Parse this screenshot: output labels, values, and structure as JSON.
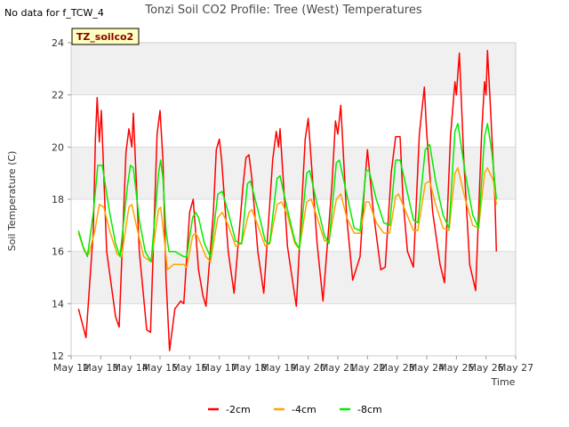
{
  "chart_data": {
    "type": "line",
    "title": "Tonzi Soil CO2 Profile: Tree (West) Temperatures",
    "no_data_note": "No data for f_TCW_4",
    "badge": "TZ_soilco2",
    "xlabel": "Time",
    "ylabel": "Soil Temperature (C)",
    "xlim": [
      12,
      27
    ],
    "ylim": [
      12,
      24
    ],
    "x_ticks": [
      12,
      13,
      14,
      15,
      16,
      17,
      18,
      19,
      20,
      21,
      22,
      23,
      24,
      25,
      26,
      27
    ],
    "x_tick_labels": [
      "May 12",
      "May 13",
      "May 14",
      "May 15",
      "May 16",
      "May 17",
      "May 18",
      "May 19",
      "May 20",
      "May 21",
      "May 22",
      "May 23",
      "May 24",
      "May 25",
      "May 26",
      "May 27"
    ],
    "y_ticks": [
      12,
      14,
      16,
      18,
      20,
      22,
      24
    ],
    "y_tick_labels": [
      "12",
      "14",
      "16",
      "18",
      "20",
      "22",
      "24"
    ],
    "grid": true,
    "legend_position": "bottom-center",
    "series": [
      {
        "name": "-2cm",
        "color": "#ff0000",
        "points": [
          [
            12.25,
            13.8
          ],
          [
            12.5,
            12.7
          ],
          [
            12.75,
            16.8
          ],
          [
            12.82,
            20.3
          ],
          [
            12.88,
            21.9
          ],
          [
            12.95,
            20.2
          ],
          [
            13.02,
            21.4
          ],
          [
            13.2,
            16.0
          ],
          [
            13.5,
            13.5
          ],
          [
            13.62,
            13.1
          ],
          [
            13.85,
            19.8
          ],
          [
            13.95,
            20.7
          ],
          [
            14.05,
            20.0
          ],
          [
            14.1,
            21.3
          ],
          [
            14.3,
            16.0
          ],
          [
            14.55,
            13.0
          ],
          [
            14.68,
            12.9
          ],
          [
            14.9,
            20.5
          ],
          [
            15.0,
            21.4
          ],
          [
            15.1,
            19.5
          ],
          [
            15.2,
            15.0
          ],
          [
            15.32,
            12.2
          ],
          [
            15.5,
            13.8
          ],
          [
            15.7,
            14.1
          ],
          [
            15.8,
            14.0
          ],
          [
            16.0,
            17.5
          ],
          [
            16.12,
            18.0
          ],
          [
            16.3,
            15.3
          ],
          [
            16.45,
            14.3
          ],
          [
            16.55,
            13.9
          ],
          [
            16.8,
            17.5
          ],
          [
            16.9,
            19.9
          ],
          [
            17.0,
            20.3
          ],
          [
            17.08,
            19.5
          ],
          [
            17.3,
            16.0
          ],
          [
            17.5,
            14.4
          ],
          [
            17.8,
            18.5
          ],
          [
            17.9,
            19.6
          ],
          [
            18.0,
            19.7
          ],
          [
            18.1,
            18.8
          ],
          [
            18.3,
            16.0
          ],
          [
            18.5,
            14.4
          ],
          [
            18.8,
            19.5
          ],
          [
            18.92,
            20.6
          ],
          [
            19.0,
            20.0
          ],
          [
            19.05,
            20.7
          ],
          [
            19.3,
            16.2
          ],
          [
            19.6,
            13.9
          ],
          [
            19.9,
            20.3
          ],
          [
            20.0,
            21.1
          ],
          [
            20.1,
            19.5
          ],
          [
            20.3,
            16.3
          ],
          [
            20.5,
            14.1
          ],
          [
            20.8,
            18.5
          ],
          [
            20.92,
            21.0
          ],
          [
            21.0,
            20.5
          ],
          [
            21.1,
            21.6
          ],
          [
            21.3,
            17.3
          ],
          [
            21.5,
            14.9
          ],
          [
            21.75,
            15.8
          ],
          [
            21.9,
            18.5
          ],
          [
            22.0,
            19.9
          ],
          [
            22.2,
            17.5
          ],
          [
            22.45,
            15.3
          ],
          [
            22.6,
            15.4
          ],
          [
            22.8,
            19.0
          ],
          [
            22.95,
            20.4
          ],
          [
            23.1,
            20.4
          ],
          [
            23.2,
            18.0
          ],
          [
            23.35,
            16.0
          ],
          [
            23.55,
            15.4
          ],
          [
            23.75,
            20.5
          ],
          [
            23.92,
            22.3
          ],
          [
            24.0,
            20.5
          ],
          [
            24.2,
            17.5
          ],
          [
            24.45,
            15.5
          ],
          [
            24.6,
            14.8
          ],
          [
            24.8,
            20.4
          ],
          [
            24.95,
            22.5
          ],
          [
            25.0,
            22.0
          ],
          [
            25.1,
            23.6
          ],
          [
            25.25,
            19.5
          ],
          [
            25.45,
            15.5
          ],
          [
            25.65,
            14.5
          ],
          [
            25.85,
            20.5
          ],
          [
            25.95,
            22.5
          ],
          [
            26.0,
            22.0
          ],
          [
            26.05,
            23.7
          ],
          [
            26.15,
            21.5
          ],
          [
            26.3,
            18.0
          ],
          [
            26.35,
            16.0
          ]
        ]
      },
      {
        "name": "-4cm",
        "color": "#ffa500",
        "points": [
          [
            12.25,
            16.7
          ],
          [
            12.45,
            16.0
          ],
          [
            12.6,
            15.9
          ],
          [
            12.8,
            16.8
          ],
          [
            12.95,
            17.8
          ],
          [
            13.1,
            17.7
          ],
          [
            13.3,
            16.8
          ],
          [
            13.55,
            15.9
          ],
          [
            13.7,
            15.8
          ],
          [
            13.95,
            17.7
          ],
          [
            14.05,
            17.8
          ],
          [
            14.2,
            17.0
          ],
          [
            14.45,
            15.8
          ],
          [
            14.7,
            15.6
          ],
          [
            14.95,
            17.6
          ],
          [
            15.02,
            17.7
          ],
          [
            15.15,
            16.4
          ],
          [
            15.25,
            15.3
          ],
          [
            15.45,
            15.5
          ],
          [
            15.8,
            15.5
          ],
          [
            15.9,
            15.4
          ],
          [
            16.1,
            16.6
          ],
          [
            16.2,
            16.7
          ],
          [
            16.3,
            16.5
          ],
          [
            16.55,
            15.8
          ],
          [
            16.7,
            15.6
          ],
          [
            16.95,
            17.3
          ],
          [
            17.1,
            17.5
          ],
          [
            17.3,
            17.0
          ],
          [
            17.55,
            16.2
          ],
          [
            17.75,
            16.3
          ],
          [
            18.0,
            17.5
          ],
          [
            18.1,
            17.6
          ],
          [
            18.3,
            17.0
          ],
          [
            18.55,
            16.2
          ],
          [
            18.7,
            16.3
          ],
          [
            18.95,
            17.8
          ],
          [
            19.1,
            17.9
          ],
          [
            19.3,
            17.4
          ],
          [
            19.55,
            16.3
          ],
          [
            19.7,
            16.1
          ],
          [
            19.95,
            17.9
          ],
          [
            20.1,
            18.0
          ],
          [
            20.3,
            17.3
          ],
          [
            20.55,
            16.4
          ],
          [
            20.7,
            16.4
          ],
          [
            20.95,
            18.0
          ],
          [
            21.1,
            18.2
          ],
          [
            21.3,
            17.3
          ],
          [
            21.55,
            16.7
          ],
          [
            21.75,
            16.7
          ],
          [
            21.95,
            17.9
          ],
          [
            22.05,
            17.9
          ],
          [
            22.3,
            17.1
          ],
          [
            22.55,
            16.7
          ],
          [
            22.75,
            16.7
          ],
          [
            22.95,
            18.1
          ],
          [
            23.05,
            18.2
          ],
          [
            23.3,
            17.5
          ],
          [
            23.55,
            16.8
          ],
          [
            23.7,
            16.8
          ],
          [
            23.95,
            18.6
          ],
          [
            24.1,
            18.7
          ],
          [
            24.3,
            17.8
          ],
          [
            24.55,
            16.9
          ],
          [
            24.75,
            16.8
          ],
          [
            24.95,
            19.0
          ],
          [
            25.05,
            19.2
          ],
          [
            25.3,
            18.0
          ],
          [
            25.55,
            17.0
          ],
          [
            25.75,
            16.9
          ],
          [
            25.95,
            19.0
          ],
          [
            26.05,
            19.2
          ],
          [
            26.25,
            18.7
          ],
          [
            26.35,
            17.8
          ]
        ]
      },
      {
        "name": "-8cm",
        "color": "#00ee00",
        "points": [
          [
            12.25,
            16.8
          ],
          [
            12.4,
            16.2
          ],
          [
            12.55,
            15.8
          ],
          [
            12.75,
            17.5
          ],
          [
            12.9,
            19.3
          ],
          [
            13.05,
            19.3
          ],
          [
            13.3,
            17.5
          ],
          [
            13.5,
            16.3
          ],
          [
            13.65,
            15.8
          ],
          [
            13.9,
            18.5
          ],
          [
            14.0,
            19.3
          ],
          [
            14.1,
            19.2
          ],
          [
            14.3,
            17.2
          ],
          [
            14.5,
            16.0
          ],
          [
            14.7,
            15.6
          ],
          [
            14.95,
            19.0
          ],
          [
            15.02,
            19.5
          ],
          [
            15.1,
            18.8
          ],
          [
            15.2,
            16.8
          ],
          [
            15.3,
            16.0
          ],
          [
            15.5,
            16.0
          ],
          [
            15.8,
            15.8
          ],
          [
            15.9,
            15.8
          ],
          [
            16.1,
            17.3
          ],
          [
            16.2,
            17.5
          ],
          [
            16.3,
            17.3
          ],
          [
            16.5,
            16.3
          ],
          [
            16.7,
            15.8
          ],
          [
            16.95,
            18.2
          ],
          [
            17.1,
            18.3
          ],
          [
            17.3,
            17.5
          ],
          [
            17.55,
            16.4
          ],
          [
            17.75,
            16.3
          ],
          [
            17.95,
            18.6
          ],
          [
            18.05,
            18.7
          ],
          [
            18.3,
            17.6
          ],
          [
            18.55,
            16.4
          ],
          [
            18.7,
            16.3
          ],
          [
            18.95,
            18.8
          ],
          [
            19.05,
            18.9
          ],
          [
            19.3,
            17.6
          ],
          [
            19.55,
            16.4
          ],
          [
            19.7,
            16.1
          ],
          [
            19.95,
            19.0
          ],
          [
            20.05,
            19.1
          ],
          [
            20.3,
            17.8
          ],
          [
            20.55,
            16.6
          ],
          [
            20.7,
            16.3
          ],
          [
            20.95,
            19.4
          ],
          [
            21.05,
            19.5
          ],
          [
            21.3,
            18.2
          ],
          [
            21.55,
            16.9
          ],
          [
            21.75,
            16.8
          ],
          [
            21.95,
            19.1
          ],
          [
            22.05,
            19.1
          ],
          [
            22.3,
            18.0
          ],
          [
            22.55,
            17.1
          ],
          [
            22.75,
            17.0
          ],
          [
            22.95,
            19.5
          ],
          [
            23.1,
            19.5
          ],
          [
            23.3,
            18.5
          ],
          [
            23.55,
            17.2
          ],
          [
            23.7,
            17.1
          ],
          [
            23.95,
            19.9
          ],
          [
            24.1,
            20.1
          ],
          [
            24.3,
            18.7
          ],
          [
            24.55,
            17.4
          ],
          [
            24.75,
            16.9
          ],
          [
            24.95,
            20.6
          ],
          [
            25.05,
            20.9
          ],
          [
            25.3,
            19.0
          ],
          [
            25.55,
            17.4
          ],
          [
            25.75,
            16.9
          ],
          [
            25.95,
            20.4
          ],
          [
            26.05,
            20.9
          ],
          [
            26.2,
            19.8
          ],
          [
            26.35,
            18.0
          ]
        ]
      }
    ]
  }
}
